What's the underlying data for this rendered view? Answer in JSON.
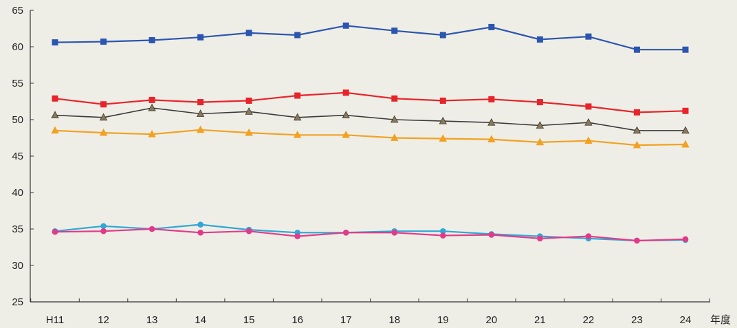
{
  "chart_data": {
    "type": "line",
    "categories": [
      "H11",
      "12",
      "13",
      "14",
      "15",
      "16",
      "17",
      "18",
      "19",
      "20",
      "21",
      "22",
      "23",
      "24"
    ],
    "x_unit_label": "年度",
    "ylim": [
      25,
      65
    ],
    "y_ticks": [
      25,
      30,
      35,
      40,
      45,
      50,
      55,
      60,
      65
    ],
    "grid": false,
    "series": [
      {
        "color": "#2b55b0",
        "marker": "square",
        "values": [
          60.6,
          60.7,
          60.9,
          61.3,
          61.9,
          61.6,
          62.9,
          62.2,
          61.6,
          62.7,
          61.0,
          61.4,
          59.6,
          59.6
        ]
      },
      {
        "color": "#e8232a",
        "marker": "square",
        "values": [
          52.9,
          52.1,
          52.7,
          52.4,
          52.6,
          53.3,
          53.7,
          52.9,
          52.6,
          52.8,
          52.4,
          51.8,
          51.0,
          51.2
        ]
      },
      {
        "color": "#3a3a3a",
        "marker": "triangle",
        "values": [
          50.6,
          50.3,
          51.6,
          50.8,
          51.1,
          50.3,
          50.6,
          50.0,
          49.8,
          49.6,
          49.2,
          49.6,
          48.5,
          48.5
        ]
      },
      {
        "color": "#f2a122",
        "marker": "triangle",
        "values": [
          48.5,
          48.2,
          48.0,
          48.6,
          48.2,
          47.9,
          47.9,
          47.5,
          47.4,
          47.3,
          46.9,
          47.1,
          46.5,
          46.6
        ]
      },
      {
        "color": "#2fa8d5",
        "marker": "circle",
        "values": [
          34.7,
          35.4,
          35.0,
          35.6,
          34.9,
          34.5,
          34.5,
          34.7,
          34.7,
          34.3,
          34.0,
          33.7,
          33.4,
          33.5
        ]
      },
      {
        "color": "#e23a8a",
        "marker": "circle",
        "values": [
          34.6,
          34.7,
          35.0,
          34.5,
          34.7,
          34.0,
          34.5,
          34.5,
          34.1,
          34.2,
          33.7,
          34.0,
          33.4,
          33.6
        ]
      }
    ]
  }
}
